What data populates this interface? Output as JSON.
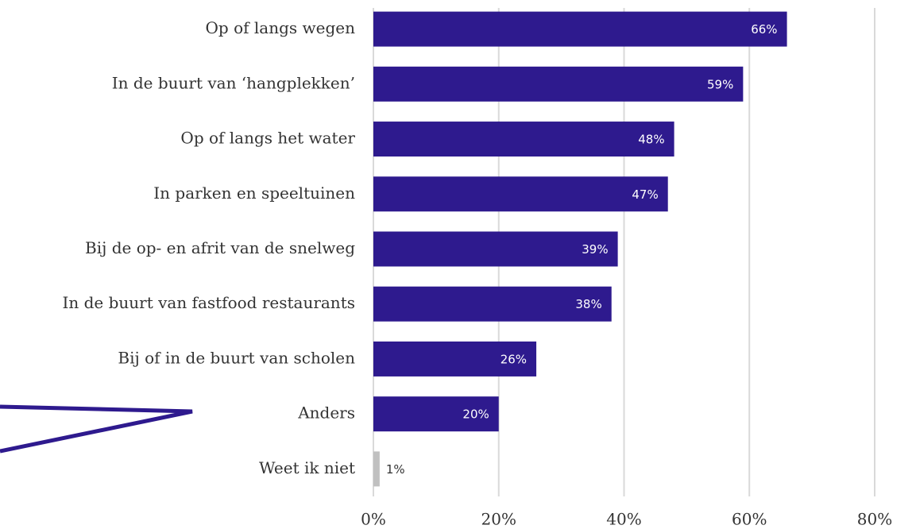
{
  "chart_data": {
    "type": "bar",
    "orientation": "horizontal",
    "categories": [
      "Op of langs wegen",
      "In de buurt van ‘hangplekken’",
      "Op of langs het water",
      "In parken en speeltuinen",
      "Bij de op- en afrit van de snelweg",
      "In de buurt van fastfood restaurants",
      "Bij of in de buurt van scholen",
      "Anders",
      "Weet ik niet"
    ],
    "values": [
      66,
      59,
      48,
      47,
      39,
      38,
      26,
      20,
      1
    ],
    "value_labels": [
      "66%",
      "59%",
      "48%",
      "47%",
      "39%",
      "38%",
      "26%",
      "20%",
      "1%"
    ],
    "colors": [
      "#2e1a8e",
      "#2e1a8e",
      "#2e1a8e",
      "#2e1a8e",
      "#2e1a8e",
      "#2e1a8e",
      "#2e1a8e",
      "#2e1a8e",
      "#c0c0c0"
    ],
    "xlim": [
      0,
      80
    ],
    "xticks": [
      {
        "value": 0,
        "label": "0%"
      },
      {
        "value": 20,
        "label": "20%"
      },
      {
        "value": 40,
        "label": "40%"
      },
      {
        "value": 60,
        "label": "60%"
      },
      {
        "value": 80,
        "label": "80%"
      }
    ],
    "grid": true
  }
}
